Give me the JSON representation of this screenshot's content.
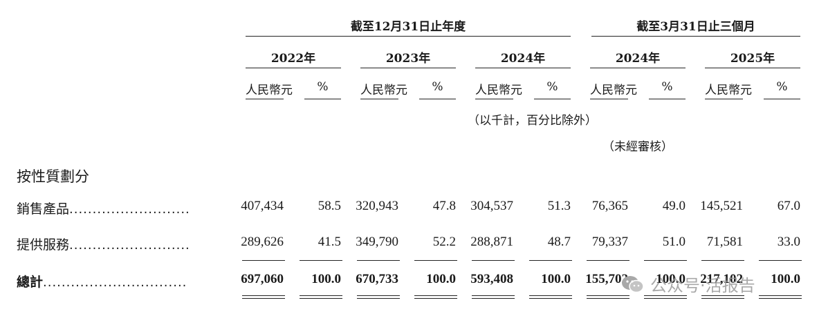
{
  "header": {
    "group1": "截至12月31日止年度",
    "group2": "截至3月31日止三個月",
    "years": [
      "2022年",
      "2023年",
      "2024年",
      "2024年",
      "2025年"
    ],
    "col_rmb": "人民幣元",
    "col_pct": "%",
    "note_thousands": "（以千計，百分比除外）",
    "note_unaudited": "（未經審核）"
  },
  "section_title": "按性質劃分",
  "rows": [
    {
      "label": "銷售產品",
      "dots": "..........................",
      "values": [
        "407,434",
        "58.5",
        "320,943",
        "47.8",
        "304,537",
        "51.3",
        "76,365",
        "49.0",
        "145,521",
        "67.0"
      ]
    },
    {
      "label": "提供服務",
      "dots": "..........................",
      "values": [
        "289,626",
        "41.5",
        "349,790",
        "52.2",
        "288,871",
        "48.7",
        "79,337",
        "51.0",
        "71,581",
        "33.0"
      ]
    }
  ],
  "total": {
    "label": "總計",
    "dots": "...............................",
    "values": [
      "697,060",
      "100.0",
      "670,733",
      "100.0",
      "593,408",
      "100.0",
      "155,702",
      "100.0",
      "217,102",
      "100.0"
    ]
  },
  "watermark": {
    "icon": "wechat-icon",
    "text": "公众号·活报告"
  }
}
